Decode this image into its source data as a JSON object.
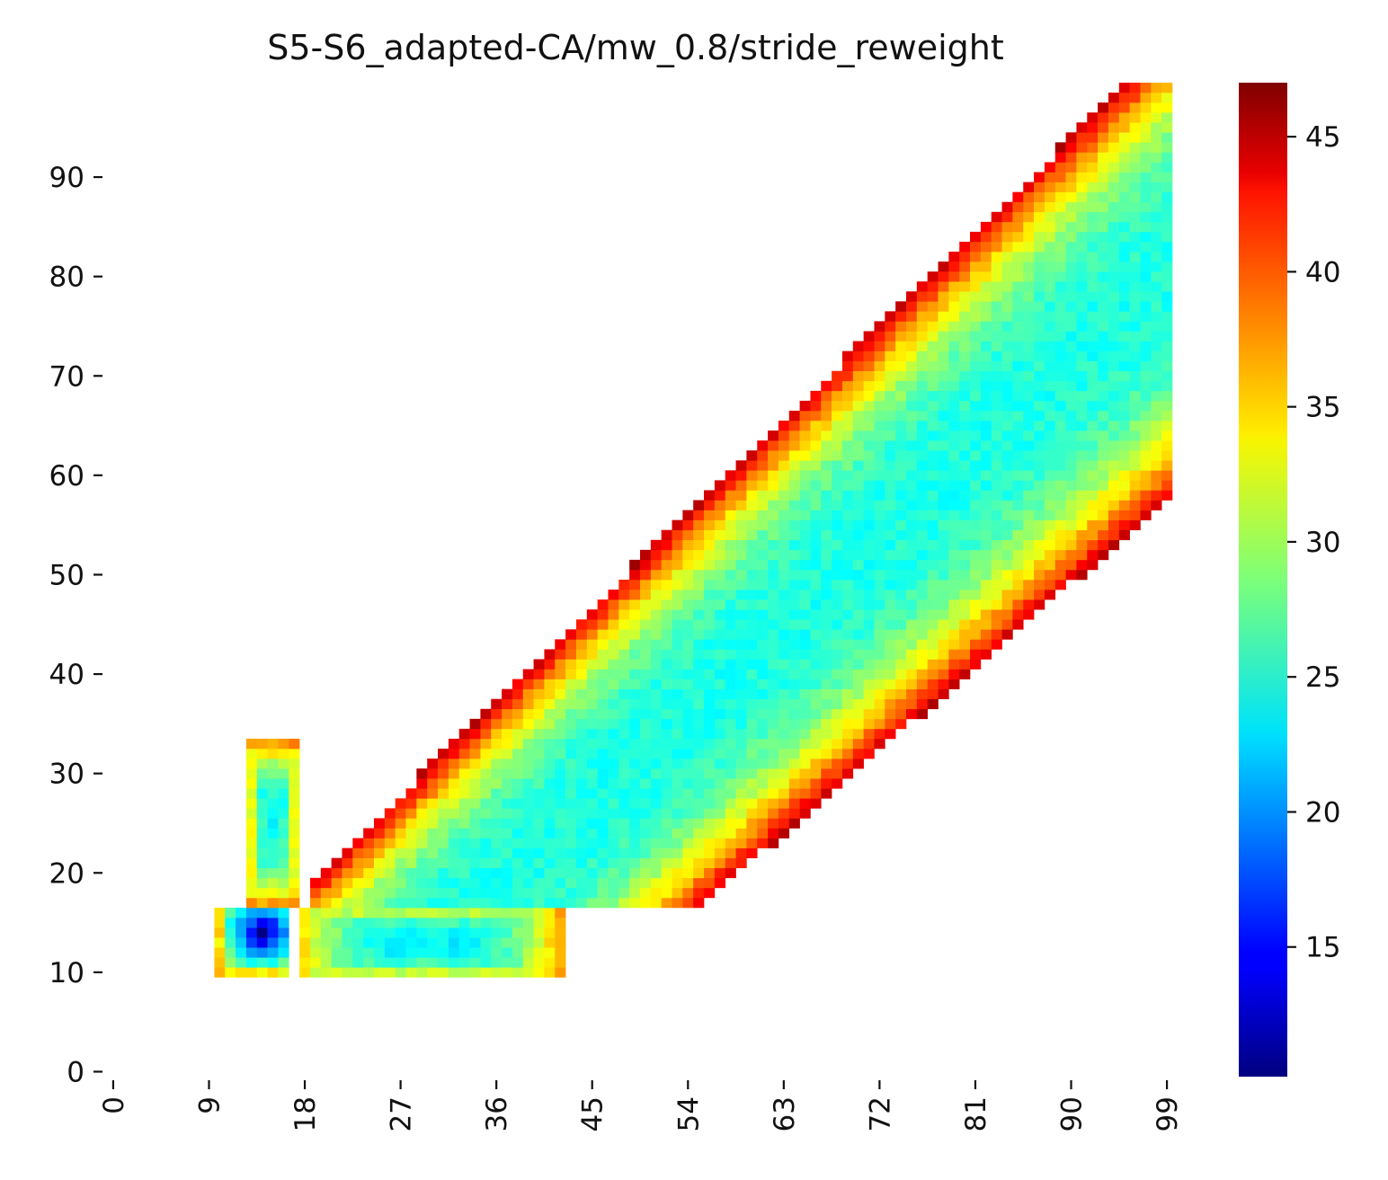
{
  "chart_data": {
    "type": "heatmap",
    "title": "S5-S6_adapted-CA/mw_0.8/stride_reweight",
    "xlabel": "",
    "ylabel": "",
    "x_range": [
      0,
      100
    ],
    "y_range": [
      0,
      100
    ],
    "x_ticks": [
      "0",
      "9",
      "18",
      "27",
      "36",
      "45",
      "54",
      "63",
      "72",
      "81",
      "90",
      "99"
    ],
    "y_ticks": [
      "0",
      "10",
      "20",
      "30",
      "40",
      "50",
      "60",
      "70",
      "80",
      "90"
    ],
    "colormap": "jet",
    "colorbar": {
      "range": [
        10.2,
        47
      ],
      "ticks": [
        "15",
        "20",
        "25",
        "30",
        "35",
        "40",
        "45"
      ]
    },
    "regions": [
      {
        "name": "small-square",
        "x": [
          10,
          17
        ],
        "y": [
          10,
          17
        ],
        "min_value": 11
      },
      {
        "name": "vertical-strip",
        "x": [
          13,
          18
        ],
        "y": [
          17,
          34
        ],
        "min_value": 24
      },
      {
        "name": "horizontal-strip",
        "x": [
          18,
          43
        ],
        "y": [
          10,
          17
        ],
        "min_value": 23
      },
      {
        "name": "main-diagonal-band",
        "x": [
          19,
          100
        ],
        "y": [
          17,
          100
        ],
        "min_value": 24
      }
    ],
    "notes_visible": "colorbar at right"
  }
}
